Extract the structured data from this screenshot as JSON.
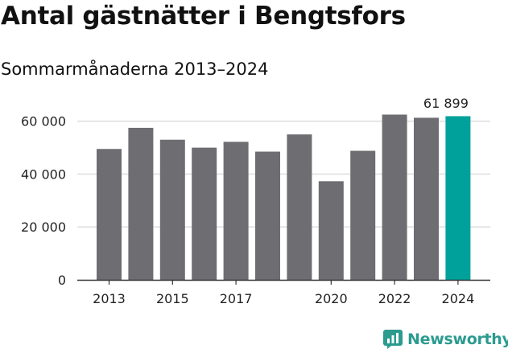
{
  "title": "Antal gästnätter i Bengtsfors",
  "subtitle": "Sommarmånaderna 2013–2024",
  "brand": "Newsworthy",
  "colors": {
    "bar": "#6e6d72",
    "highlight": "#00a19a",
    "grid": "#dddddd",
    "axis": "#333333",
    "brand": "#2c9b8f"
  },
  "chart_data": {
    "type": "bar",
    "categories": [
      "2013",
      "2014",
      "2015",
      "2016",
      "2017",
      "2018",
      "2019",
      "2020",
      "2021",
      "2022",
      "2023",
      "2024"
    ],
    "values": [
      49500,
      57500,
      53000,
      50000,
      52200,
      48500,
      55000,
      37300,
      48800,
      62500,
      61300,
      61899
    ],
    "highlight_index": 11,
    "annotation": {
      "index": 11,
      "text": "61 899"
    },
    "ylim": [
      0,
      66000
    ],
    "yticks": [
      0,
      20000,
      40000,
      60000
    ],
    "ytick_labels": [
      "0",
      "20 000",
      "40 000",
      "60 000"
    ],
    "xtick_labels": [
      "2013",
      "2015",
      "2017",
      "2020",
      "2022",
      "2024"
    ],
    "xtick_positions": [
      0,
      2,
      4,
      7,
      9,
      11
    ],
    "grid": true,
    "xlabel": "",
    "ylabel": ""
  }
}
